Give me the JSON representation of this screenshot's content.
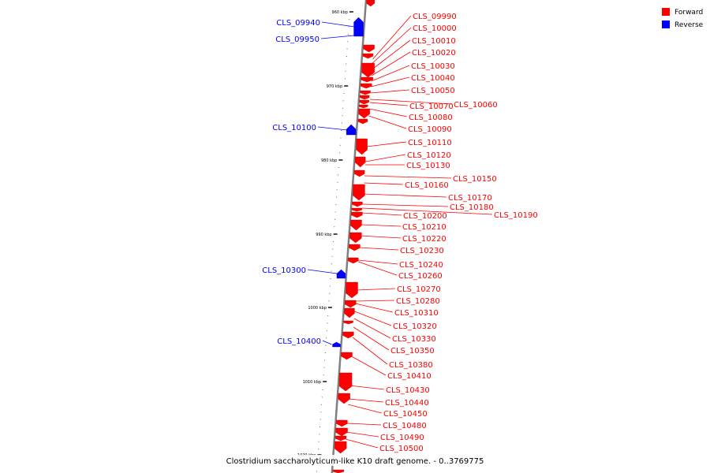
{
  "colors": {
    "forward": "#ff0000",
    "reverse": "#0000ff",
    "backbone": "#808080"
  },
  "legend": [
    {
      "label": "Forward",
      "color": "#ff0000"
    },
    {
      "label": "Reverse",
      "color": "#0000ff"
    }
  ],
  "caption": "Clostridium saccharolyticum-like K10 draft genome. - 0..3769775",
  "ticks": [
    "960 kbp",
    "970 kbp",
    "980 kbp",
    "990 kbp",
    "1000 kbp",
    "1010 kbp",
    "1020 kbp"
  ],
  "reverse_genes": [
    "CLS_09940",
    "CLS_09950",
    "CLS_10100",
    "CLS_10300",
    "CLS_10400"
  ],
  "forward_genes": [
    "CLS_09990",
    "CLS_10000",
    "CLS_10010",
    "CLS_10020",
    "CLS_10030",
    "CLS_10040",
    "CLS_10050",
    "CLS_10060",
    "CLS_10070",
    "CLS_10080",
    "CLS_10090",
    "CLS_10110",
    "CLS_10120",
    "CLS_10130",
    "CLS_10150",
    "CLS_10160",
    "CLS_10170",
    "CLS_10180",
    "CLS_10190",
    "CLS_10200",
    "CLS_10210",
    "CLS_10220",
    "CLS_10230",
    "CLS_10240",
    "CLS_10260",
    "CLS_10270",
    "CLS_10280",
    "CLS_10310",
    "CLS_10320",
    "CLS_10330",
    "CLS_10350",
    "CLS_10380",
    "CLS_10410",
    "CLS_10430",
    "CLS_10440",
    "CLS_10450",
    "CLS_10480",
    "CLS_10490",
    "CLS_10500"
  ]
}
